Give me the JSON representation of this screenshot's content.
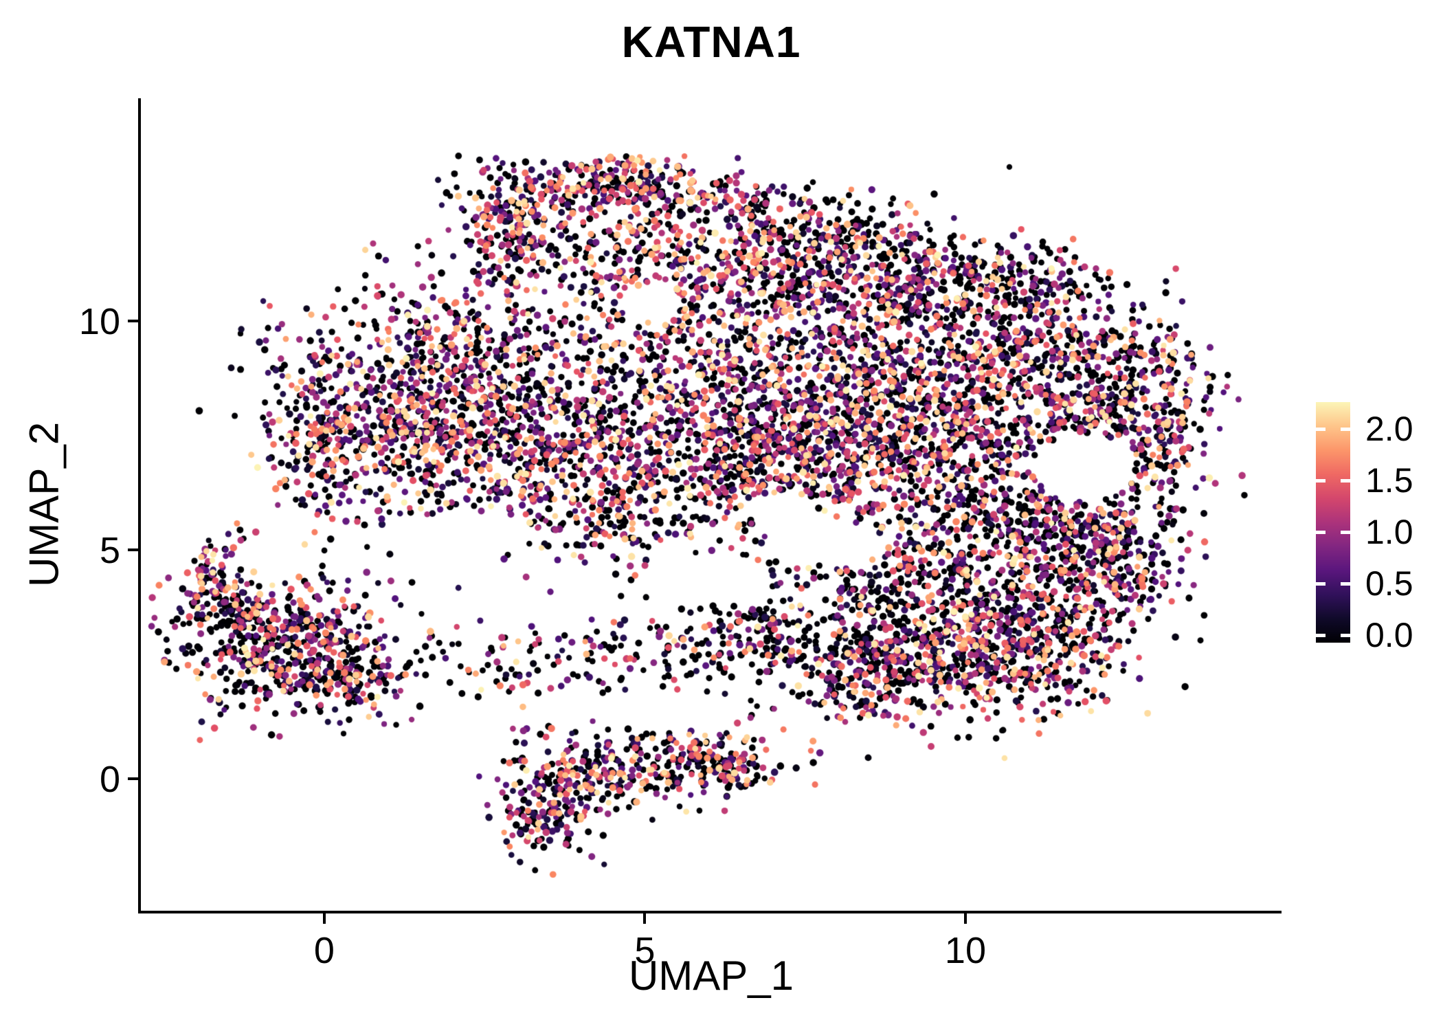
{
  "title": "KATNA1",
  "colors": {
    "background": "#ffffff",
    "axis": "#000000",
    "text": "#000000",
    "colorbar_tick": "#ffffff"
  },
  "chart_data": {
    "type": "scatter",
    "title": "KATNA1",
    "xlabel": "UMAP_1",
    "ylabel": "UMAP_2",
    "xlim": [
      -2.86,
      14.93
    ],
    "ylim": [
      -2.88,
      14.86
    ],
    "x_ticks": [
      0,
      5,
      10
    ],
    "x_tick_labels": [
      "0",
      "5",
      "10"
    ],
    "y_ticks": [
      0,
      5,
      10
    ],
    "y_tick_labels": [
      "0",
      "5",
      "10"
    ],
    "grid": false,
    "legend_position": "right",
    "point_radius": 4.6,
    "seed": 1234,
    "colorbar": {
      "tick_values": [
        2.0,
        1.5,
        1.0,
        0.5,
        0.0
      ],
      "tick_labels": [
        "2.0",
        "1.5",
        "1.0",
        "0.5",
        "0.0"
      ],
      "bar_vmin": -0.07,
      "bar_vmax": 2.26,
      "color_vmax": 2.3,
      "colormap": "magma",
      "stops": [
        {
          "t": 0.0,
          "rgb": [
            0,
            0,
            4
          ]
        },
        {
          "t": 0.125,
          "rgb": [
            29,
            17,
            71
          ]
        },
        {
          "t": 0.25,
          "rgb": [
            81,
            18,
            124
          ]
        },
        {
          "t": 0.375,
          "rgb": [
            130,
            38,
            129
          ]
        },
        {
          "t": 0.5,
          "rgb": [
            182,
            54,
            121
          ]
        },
        {
          "t": 0.625,
          "rgb": [
            230,
            81,
            100
          ]
        },
        {
          "t": 0.75,
          "rgb": [
            251,
            136,
            97
          ]
        },
        {
          "t": 0.875,
          "rgb": [
            254,
            194,
            135
          ]
        },
        {
          "t": 1.0,
          "rgb": [
            252,
            253,
            191
          ]
        }
      ]
    },
    "value_distribution": {
      "zero_fraction_default": 0.32,
      "max": 2.25,
      "exponent": 1.35
    },
    "clusters": [
      {
        "cx": 3.0,
        "cy": 12.35,
        "sx": 0.45,
        "sy": 0.5,
        "n": 160,
        "z": 0.25
      },
      {
        "cx": 4.4,
        "cy": 13.0,
        "sx": 0.7,
        "sy": 0.3,
        "n": 180,
        "z": 0.25
      },
      {
        "cx": 5.6,
        "cy": 12.75,
        "sx": 0.6,
        "sy": 0.35,
        "n": 120,
        "z": 0.3
      },
      {
        "cx": 6.9,
        "cy": 12.3,
        "sx": 0.5,
        "sy": 0.4,
        "n": 60,
        "z": 0.4
      },
      {
        "cx": 4.6,
        "cy": 11.9,
        "sx": 1.0,
        "sy": 0.5,
        "n": 80,
        "z": 0.35
      },
      {
        "cx": 2.6,
        "cy": 11.5,
        "sx": 0.5,
        "sy": 0.5,
        "n": 50,
        "z": 0.35
      },
      {
        "cx": 5.6,
        "cy": 11.2,
        "sx": 1.2,
        "sy": 0.6,
        "n": 220,
        "z": 0.3
      },
      {
        "cx": 8.2,
        "cy": 11.8,
        "sx": 0.7,
        "sy": 0.5,
        "n": 90,
        "z": 0.5
      },
      {
        "cx": 2.1,
        "cy": 8.6,
        "sx": 1.35,
        "sy": 1.2,
        "n": 850,
        "z": 0.3
      },
      {
        "cx": 1.1,
        "cy": 7.2,
        "sx": 0.8,
        "sy": 0.8,
        "n": 250,
        "z": 0.3
      },
      {
        "cx": 3.6,
        "cy": 6.9,
        "sx": 0.9,
        "sy": 0.9,
        "n": 300,
        "z": 0.3
      },
      {
        "cx": -0.15,
        "cy": 7.6,
        "sx": 0.35,
        "sy": 0.9,
        "n": 140,
        "z": 0.3
      },
      {
        "cx": 5.5,
        "cy": 8.8,
        "sx": 1.1,
        "sy": 1.3,
        "n": 450,
        "z": 0.32
      },
      {
        "cx": 6.3,
        "cy": 6.7,
        "sx": 1.0,
        "sy": 0.9,
        "n": 260,
        "z": 0.35
      },
      {
        "cx": 4.7,
        "cy": 5.6,
        "sx": 0.9,
        "sy": 0.7,
        "n": 120,
        "z": 0.4
      },
      {
        "cx": 7.8,
        "cy": 11.1,
        "sx": 1.0,
        "sy": 0.65,
        "n": 280,
        "z": 0.32
      },
      {
        "cx": 9.6,
        "cy": 10.8,
        "sx": 1.0,
        "sy": 0.6,
        "n": 240,
        "z": 0.32
      },
      {
        "cx": 10.9,
        "cy": 10.9,
        "sx": 0.6,
        "sy": 0.5,
        "n": 100,
        "z": 0.4
      },
      {
        "cx": 8.7,
        "cy": 8.6,
        "sx": 1.3,
        "sy": 1.3,
        "n": 900,
        "z": 0.3
      },
      {
        "cx": 9.9,
        "cy": 6.9,
        "sx": 1.0,
        "sy": 0.9,
        "n": 400,
        "z": 0.32
      },
      {
        "cx": 7.5,
        "cy": 7.0,
        "sx": 0.8,
        "sy": 0.9,
        "n": 300,
        "z": 0.3
      },
      {
        "cx": 11.2,
        "cy": 9.3,
        "sx": 0.8,
        "sy": 0.8,
        "n": 260,
        "z": 0.35
      },
      {
        "cx": 12.4,
        "cy": 8.7,
        "sx": 0.8,
        "sy": 0.8,
        "n": 240,
        "z": 0.35
      },
      {
        "cx": 13.05,
        "cy": 7.2,
        "sx": 0.45,
        "sy": 0.9,
        "n": 160,
        "z": 0.35
      },
      {
        "cx": 11.5,
        "cy": 5.6,
        "sx": 0.9,
        "sy": 0.6,
        "n": 150,
        "z": 0.45
      },
      {
        "cx": 12.0,
        "cy": 7.9,
        "sx": 0.5,
        "sy": 0.4,
        "n": 90,
        "z": 0.35
      },
      {
        "cx": 10.5,
        "cy": 5.2,
        "sx": 0.9,
        "sy": 0.6,
        "n": 130,
        "z": 0.5
      },
      {
        "cx": 12.3,
        "cy": 4.6,
        "sx": 0.6,
        "sy": 0.7,
        "n": 180,
        "z": 0.4
      },
      {
        "cx": 11.9,
        "cy": 5.7,
        "sx": 0.5,
        "sy": 0.5,
        "n": 90,
        "z": 0.4
      },
      {
        "cx": 9.7,
        "cy": 3.2,
        "sx": 1.2,
        "sy": 0.8,
        "n": 650,
        "z": 0.4
      },
      {
        "cx": 11.0,
        "cy": 2.4,
        "sx": 0.7,
        "sy": 0.6,
        "n": 200,
        "z": 0.4
      },
      {
        "cx": 8.4,
        "cy": 2.3,
        "sx": 0.8,
        "sy": 0.55,
        "n": 220,
        "z": 0.4
      },
      {
        "cx": 11.5,
        "cy": 3.9,
        "sx": 0.6,
        "sy": 0.6,
        "n": 150,
        "z": 0.38
      },
      {
        "cx": 9.0,
        "cy": 4.5,
        "sx": 1.2,
        "sy": 0.5,
        "n": 120,
        "z": 0.45
      },
      {
        "cx": 3.2,
        "cy": 2.6,
        "sx": 1.0,
        "sy": 0.5,
        "n": 90,
        "z": 0.45
      },
      {
        "cx": 5.8,
        "cy": 2.7,
        "sx": 1.2,
        "sy": 0.5,
        "n": 130,
        "z": 0.45
      },
      {
        "cx": 6.9,
        "cy": 3.4,
        "sx": 0.6,
        "sy": 0.4,
        "n": 70,
        "z": 0.45
      },
      {
        "cx": -0.6,
        "cy": 2.9,
        "sx": 0.85,
        "sy": 0.75,
        "n": 520,
        "z": 0.35
      },
      {
        "cx": 0.4,
        "cy": 2.2,
        "sx": 0.5,
        "sy": 0.4,
        "n": 100,
        "z": 0.35
      },
      {
        "cx": -1.75,
        "cy": 4.35,
        "sx": 0.22,
        "sy": 0.45,
        "n": 70,
        "z": 0.3
      },
      {
        "cx": -1.3,
        "cy": 3.6,
        "sx": 0.3,
        "sy": 0.4,
        "n": 60,
        "z": 0.35
      },
      {
        "cx": 5.2,
        "cy": 0.45,
        "sx": 0.95,
        "sy": 0.5,
        "n": 260,
        "z": 0.35
      },
      {
        "cx": 3.4,
        "cy": -0.55,
        "sx": 0.4,
        "sy": 0.6,
        "n": 170,
        "z": 0.3
      },
      {
        "cx": 4.3,
        "cy": 0.0,
        "sx": 0.5,
        "sy": 0.35,
        "n": 80,
        "z": 0.35
      },
      {
        "cx": 6.3,
        "cy": 0.3,
        "sx": 0.4,
        "sy": 0.35,
        "n": 70,
        "z": 0.4
      },
      {
        "cx": 7.0,
        "cy": 8.2,
        "sx": 2.8,
        "sy": 2.0,
        "n": 200,
        "z": 0.35
      }
    ],
    "holes": [
      {
        "cx": 11.85,
        "cy": 6.8,
        "rx": 0.8,
        "ry": 0.75
      },
      {
        "cx": 7.1,
        "cy": 5.9,
        "rx": 0.6,
        "ry": 0.35
      },
      {
        "cx": 7.8,
        "cy": 5.2,
        "rx": 0.8,
        "ry": 0.5
      },
      {
        "cx": 5.1,
        "cy": 10.4,
        "rx": 0.5,
        "ry": 0.4
      },
      {
        "cx": 2.0,
        "cy": 5.3,
        "rx": 1.2,
        "ry": 0.5
      },
      {
        "cx": 6.0,
        "cy": 4.4,
        "rx": 1.0,
        "ry": 0.55
      },
      {
        "cx": 5.3,
        "cy": 1.5,
        "rx": 1.3,
        "ry": 0.45
      }
    ]
  }
}
